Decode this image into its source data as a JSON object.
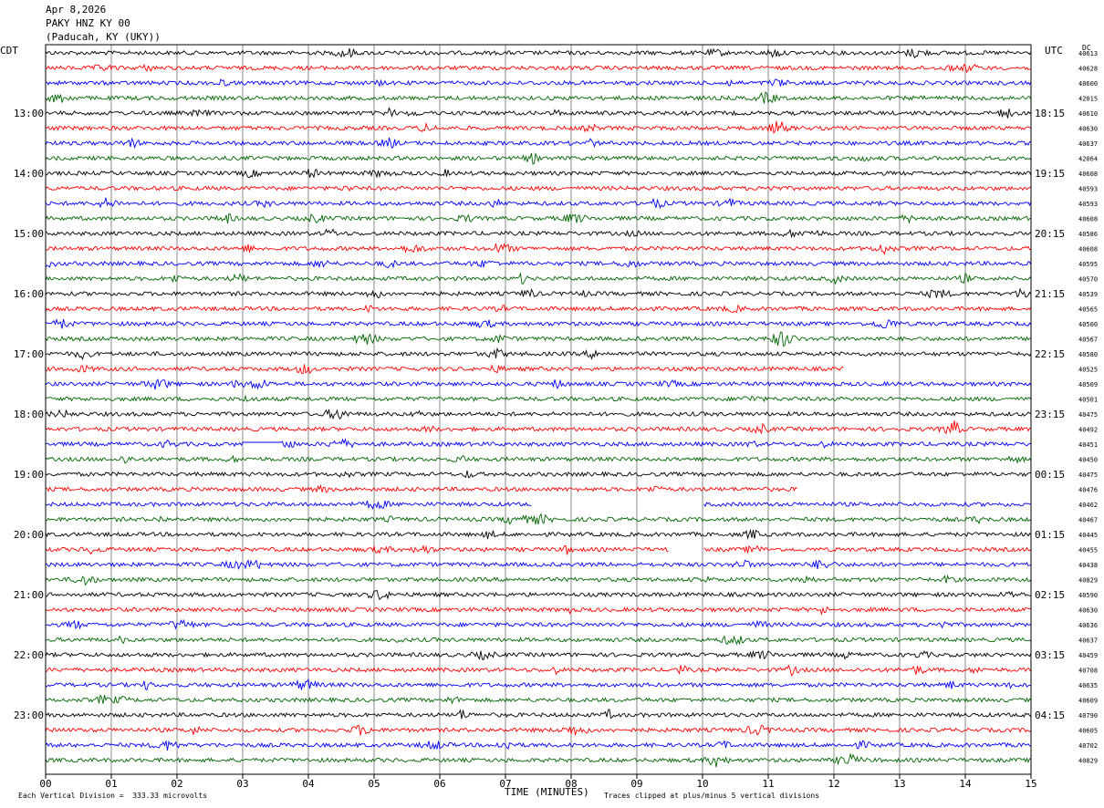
{
  "header": {
    "date": "Apr 8,2026",
    "station": "PAKY HNZ KY 00",
    "location": "(Paducah, KY (UKY))"
  },
  "left_tz": "CDT",
  "right_tz": "UTC",
  "dc_label": "DC",
  "footer": {
    "scale": "Each Vertical Division =  333.33 microvolts",
    "clip": "Traces clipped at plus/minus 5 vertical divisions"
  },
  "chart_data": {
    "type": "line",
    "title": "",
    "xlabel": "TIME (MINUTES)",
    "ylabel": "",
    "xlim": [
      0,
      15
    ],
    "x_ticks": [
      "00",
      "01",
      "02",
      "03",
      "04",
      "05",
      "06",
      "07",
      "08",
      "09",
      "10",
      "11",
      "12",
      "13",
      "14",
      "15"
    ],
    "grid": true,
    "trace_colors": [
      "#000000",
      "#ff0000",
      "#0000ff",
      "#006600"
    ],
    "left_hour_labels": [
      "13:00",
      "14:00",
      "15:00",
      "16:00",
      "17:00",
      "18:00",
      "19:00",
      "20:00",
      "21:00",
      "22:00",
      "23:00"
    ],
    "right_hour_labels": [
      "18:15",
      "19:15",
      "20:15",
      "21:15",
      "22:15",
      "23:15",
      "00:15",
      "01:15",
      "02:15",
      "03:15",
      "04:15"
    ],
    "dc_values": [
      "40613",
      "40628",
      "40600",
      "42015",
      "40610",
      "40630",
      "40637",
      "42064",
      "40608",
      "40593",
      "40593",
      "40608",
      "40586",
      "40608",
      "40595",
      "40570",
      "40539",
      "40565",
      "40500",
      "40567",
      "40580",
      "40525",
      "40509",
      "40501",
      "40475",
      "40492",
      "40451",
      "40450",
      "40475",
      "40476",
      "40462",
      "40467",
      "40445",
      "40455",
      "40438",
      "40829",
      "40590",
      "40630",
      "40636",
      "40637",
      "40459",
      "40708",
      "40635",
      "40609",
      "40790",
      "40605",
      "40702",
      "40829"
    ],
    "gaps": [
      {
        "trace": 21,
        "from_min": 12.15,
        "to_min": 15.0
      },
      {
        "trace": 29,
        "from_min": 11.45,
        "to_min": 15.0
      },
      {
        "trace": 30,
        "from_min": 7.4,
        "to_min": 10.0
      },
      {
        "trace": 33,
        "from_min": 9.5,
        "to_min": 10.0
      }
    ],
    "flat_segments": [
      {
        "trace": 26,
        "from_min": 3.0,
        "to_min": 3.6
      }
    ]
  }
}
